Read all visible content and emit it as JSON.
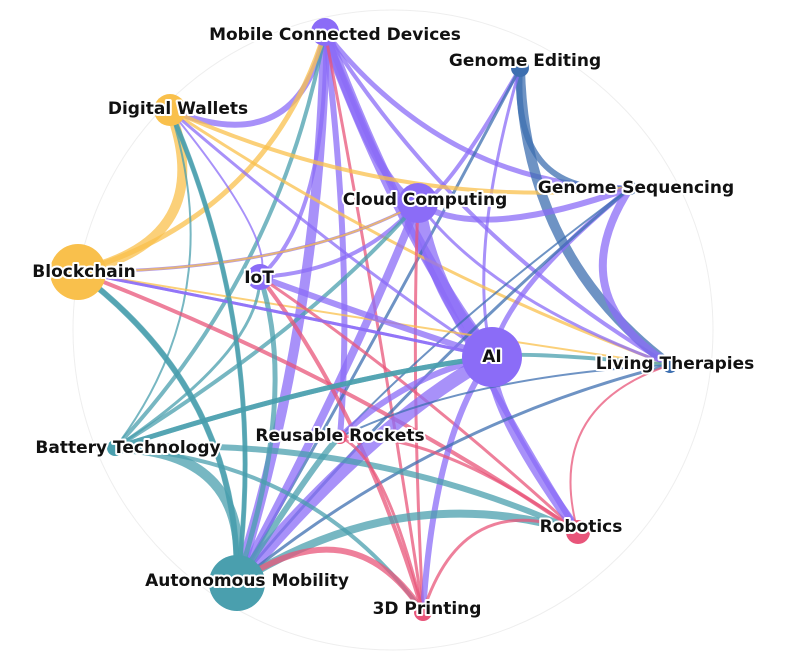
{
  "nodes": [
    {
      "label": "Mobile Connected Devices"
    },
    {
      "label": "Genome Editing"
    },
    {
      "label": "Digital Wallets"
    },
    {
      "label": "Cloud Computing"
    },
    {
      "label": "Genome Sequencing"
    },
    {
      "label": "Blockchain"
    },
    {
      "label": "IoT"
    },
    {
      "label": "AI"
    },
    {
      "label": "Living Therapies"
    },
    {
      "label": "Battery Technology"
    },
    {
      "label": "Reusable Rockets"
    },
    {
      "label": "Robotics"
    },
    {
      "label": "Autonomous Mobility"
    },
    {
      "label": "3D Printing"
    }
  ]
}
